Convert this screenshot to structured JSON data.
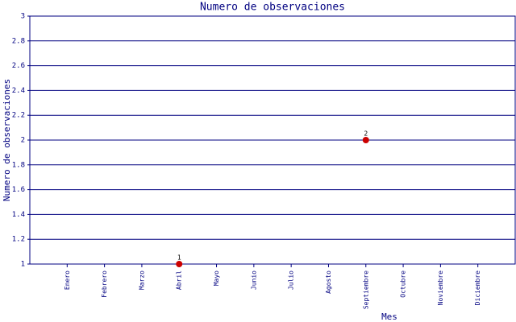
{
  "chart_data": {
    "type": "line",
    "title": "Numero de observaciones",
    "x_label": "Mes",
    "y_label": "Numero de observaciones",
    "categories": [
      "Enero",
      "Febrero",
      "Marzo",
      "Abril",
      "Mayo",
      "Junio",
      "Julio",
      "Agosto",
      "Septiembre",
      "Octubre",
      "Noviembre",
      "Diciembre"
    ],
    "series": [
      {
        "color": "#cc0000",
        "values": [
          null,
          null,
          null,
          1,
          null,
          null,
          null,
          null,
          2,
          null,
          null,
          null
        ]
      }
    ],
    "ylim": [
      1,
      3
    ],
    "yticks": [
      1,
      1.2,
      1.4,
      1.6,
      1.8,
      2,
      2.2,
      2.4,
      2.6,
      2.8,
      3
    ],
    "grid": true,
    "axis_color": "#000080"
  }
}
